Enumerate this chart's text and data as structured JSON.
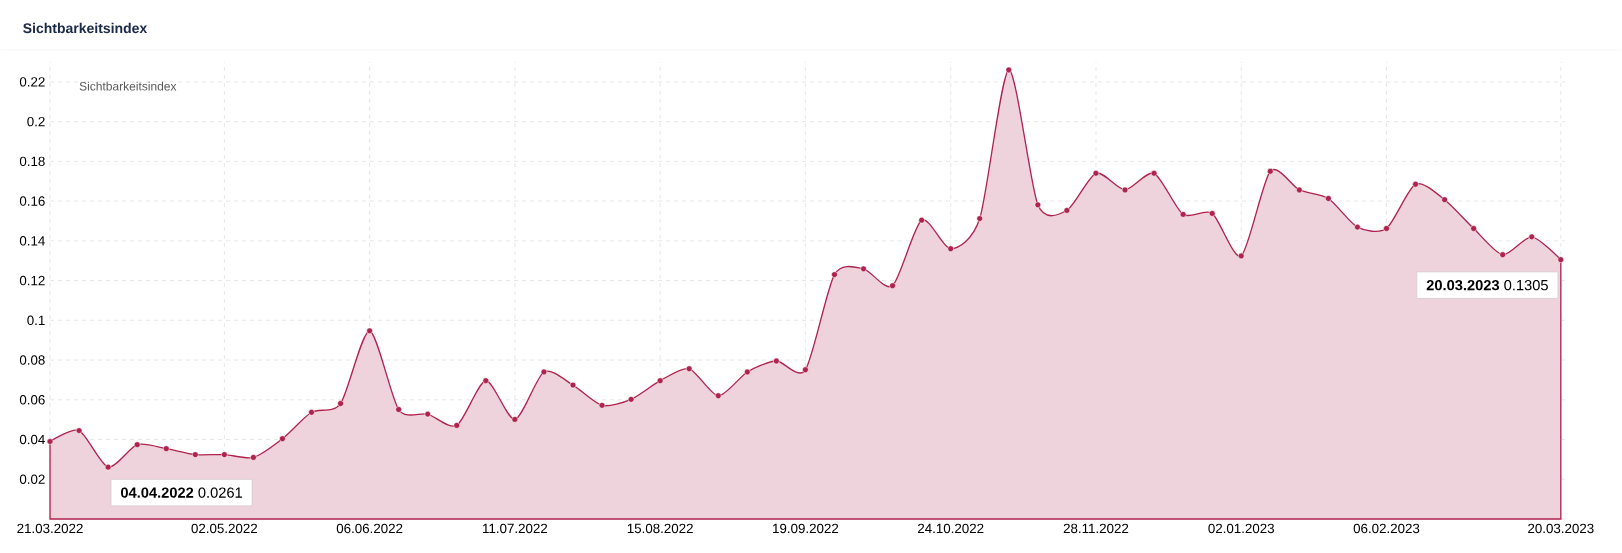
{
  "chart_data": {
    "type": "area",
    "title": "Sichtbarkeitsindex",
    "legend_title": "Sichtbarkeitsindex",
    "x": [
      "2022-03-21",
      "2022-03-28",
      "2022-04-04",
      "2022-04-11",
      "2022-04-18",
      "2022-04-25",
      "2022-05-02",
      "2022-05-09",
      "2022-05-16",
      "2022-05-23",
      "2022-05-30",
      "2022-06-06",
      "2022-06-13",
      "2022-06-20",
      "2022-06-27",
      "2022-07-04",
      "2022-07-11",
      "2022-07-18",
      "2022-07-25",
      "2022-08-01",
      "2022-08-08",
      "2022-08-15",
      "2022-08-22",
      "2022-08-29",
      "2022-09-05",
      "2022-09-12",
      "2022-09-19",
      "2022-09-26",
      "2022-10-03",
      "2022-10-10",
      "2022-10-17",
      "2022-10-24",
      "2022-10-31",
      "2022-11-07",
      "2022-11-14",
      "2022-11-21",
      "2022-11-28",
      "2022-12-05",
      "2022-12-12",
      "2022-12-19",
      "2022-12-26",
      "2023-01-02",
      "2023-01-09",
      "2023-01-16",
      "2023-01-23",
      "2023-01-30",
      "2023-02-06",
      "2023-02-13",
      "2023-02-20",
      "2023-02-27",
      "2023-03-06",
      "2023-03-13",
      "2023-03-20"
    ],
    "series": [
      {
        "color": "#b0234f",
        "values": [
          0.039,
          0.0445,
          0.0261,
          0.0374,
          0.0354,
          0.0324,
          0.0324,
          0.031,
          0.0404,
          0.0537,
          0.0581,
          0.0947,
          0.0551,
          0.0528,
          0.0471,
          0.0696,
          0.0501,
          0.074,
          0.0674,
          0.0572,
          0.0602,
          0.0696,
          0.0756,
          0.062,
          0.074,
          0.0795,
          0.0751,
          0.123,
          0.1259,
          0.1174,
          0.1504,
          0.136,
          0.1512,
          0.226,
          0.1581,
          0.1553,
          0.174,
          0.1656,
          0.174,
          0.1533,
          0.1538,
          0.1324,
          0.175,
          0.1656,
          0.1613,
          0.1469,
          0.1462,
          0.1685,
          0.1607,
          0.1462,
          0.133,
          0.142,
          0.1305
        ]
      }
    ],
    "xlim": [
      "2022-03-21",
      "2023-03-21"
    ],
    "xticks": [
      {
        "value": "2022-03-21",
        "label": "21.03.2022"
      },
      {
        "value": "2022-05-02",
        "label": "02.05.2022"
      },
      {
        "value": "2022-06-06",
        "label": "06.06.2022"
      },
      {
        "value": "2022-07-11",
        "label": "11.07.2022"
      },
      {
        "value": "2022-08-15",
        "label": "15.08.2022"
      },
      {
        "value": "2022-09-19",
        "label": "19.09.2022"
      },
      {
        "value": "2022-10-24",
        "label": "24.10.2022"
      },
      {
        "value": "2022-11-28",
        "label": "28.11.2022"
      },
      {
        "value": "2023-01-02",
        "label": "02.01.2023"
      },
      {
        "value": "2023-02-06",
        "label": "06.02.2023"
      },
      {
        "value": "2023-03-20",
        "label": "20.03.2023"
      }
    ],
    "ylim": [
      0,
      0.23
    ],
    "yticks": [
      0.02,
      0.04,
      0.06,
      0.08,
      0.1,
      0.12,
      0.14,
      0.16,
      0.18,
      0.2,
      0.22
    ],
    "grid": true,
    "marker": "circle",
    "annotations": [
      {
        "text": "**04.04.2022** 0.0261",
        "x": "2022-04-04",
        "y": 0.0261
      },
      {
        "text": "**20.03.2023** 0.1305",
        "x": "2023-03-20",
        "y": 0.1305
      }
    ]
  }
}
